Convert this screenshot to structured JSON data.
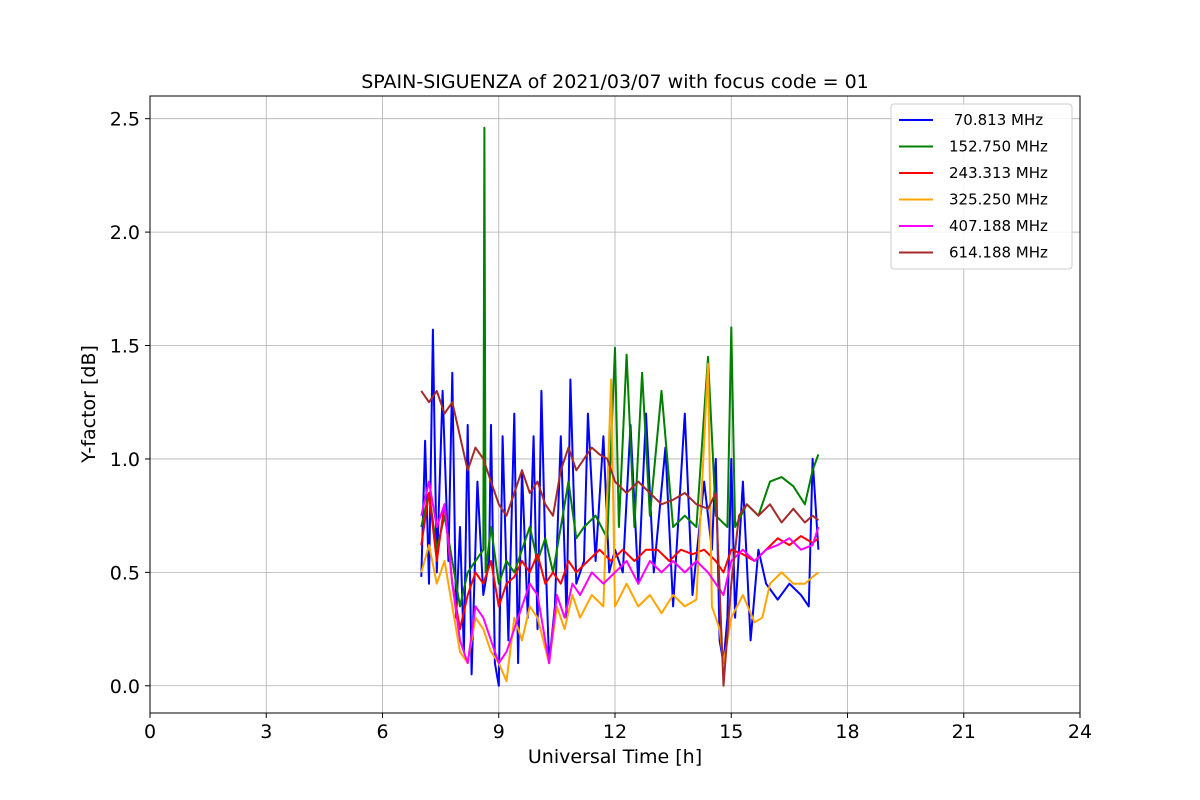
{
  "chart_data": {
    "type": "line",
    "title": "SPAIN-SIGUENZA of 2021/03/07 with focus code = 01",
    "xlabel": "Universal Time [h]",
    "ylabel": "Y-factor [dB]",
    "xlim": [
      0,
      24
    ],
    "ylim": [
      -0.12,
      2.6
    ],
    "xticks": [
      0,
      3,
      6,
      9,
      12,
      15,
      18,
      21,
      24
    ],
    "xtick_labels": [
      "0",
      "3",
      "6",
      "9",
      "12",
      "15",
      "18",
      "21",
      "24"
    ],
    "yticks": [
      0.0,
      0.5,
      1.0,
      1.5,
      2.0,
      2.5
    ],
    "ytick_labels": [
      "0.0",
      "0.5",
      "1.0",
      "1.5",
      "2.0",
      "2.5"
    ],
    "grid": true,
    "legend_position": "top-right",
    "series": [
      {
        "name": " 70.813 MHz",
        "color": "#0000ff",
        "points": [
          [
            7.0,
            0.48
          ],
          [
            7.1,
            1.08
          ],
          [
            7.2,
            0.45
          ],
          [
            7.3,
            1.57
          ],
          [
            7.4,
            0.5
          ],
          [
            7.55,
            1.3
          ],
          [
            7.7,
            0.55
          ],
          [
            7.8,
            1.38
          ],
          [
            7.9,
            0.3
          ],
          [
            8.0,
            0.7
          ],
          [
            8.1,
            0.15
          ],
          [
            8.2,
            1.15
          ],
          [
            8.3,
            0.05
          ],
          [
            8.45,
            0.9
          ],
          [
            8.6,
            0.4
          ],
          [
            8.75,
            0.55
          ],
          [
            8.8,
            1.15
          ],
          [
            8.9,
            0.1
          ],
          [
            9.0,
            0.0
          ],
          [
            9.1,
            1.1
          ],
          [
            9.25,
            0.2
          ],
          [
            9.4,
            1.2
          ],
          [
            9.5,
            0.1
          ],
          [
            9.6,
            0.95
          ],
          [
            9.75,
            0.3
          ],
          [
            9.9,
            1.1
          ],
          [
            10.0,
            0.25
          ],
          [
            10.1,
            1.3
          ],
          [
            10.2,
            0.6
          ],
          [
            10.3,
            0.1
          ],
          [
            10.45,
            0.35
          ],
          [
            10.6,
            1.1
          ],
          [
            10.75,
            0.3
          ],
          [
            10.85,
            1.35
          ],
          [
            11.0,
            0.45
          ],
          [
            11.2,
            0.55
          ],
          [
            11.3,
            1.2
          ],
          [
            11.5,
            0.55
          ],
          [
            11.7,
            1.1
          ],
          [
            11.85,
            0.5
          ],
          [
            12.0,
            0.6
          ],
          [
            12.2,
            0.5
          ],
          [
            12.4,
            1.15
          ],
          [
            12.6,
            0.45
          ],
          [
            12.8,
            1.2
          ],
          [
            13.0,
            0.5
          ],
          [
            13.3,
            1.05
          ],
          [
            13.5,
            0.35
          ],
          [
            13.8,
            1.2
          ],
          [
            14.0,
            0.4
          ],
          [
            14.3,
            0.9
          ],
          [
            14.5,
            0.6
          ],
          [
            14.6,
            1.0
          ],
          [
            14.7,
            0.2
          ],
          [
            14.8,
            0.1
          ],
          [
            14.9,
            0.3
          ],
          [
            15.0,
            1.0
          ],
          [
            15.1,
            0.3
          ],
          [
            15.3,
            0.9
          ],
          [
            15.5,
            0.2
          ],
          [
            15.7,
            0.6
          ],
          [
            15.9,
            0.45
          ],
          [
            16.2,
            0.38
          ],
          [
            16.5,
            0.45
          ],
          [
            16.8,
            0.4
          ],
          [
            17.0,
            0.35
          ],
          [
            17.1,
            1.0
          ],
          [
            17.25,
            0.6
          ]
        ]
      },
      {
        "name": "152.750 MHz",
        "color": "#008000",
        "points": [
          [
            7.0,
            0.7
          ],
          [
            7.2,
            0.85
          ],
          [
            7.4,
            0.6
          ],
          [
            7.6,
            0.75
          ],
          [
            7.8,
            0.55
          ],
          [
            8.0,
            0.35
          ],
          [
            8.2,
            0.5
          ],
          [
            8.4,
            0.55
          ],
          [
            8.6,
            0.6
          ],
          [
            8.63,
            2.46
          ],
          [
            8.66,
            0.5
          ],
          [
            8.8,
            0.7
          ],
          [
            9.0,
            0.45
          ],
          [
            9.2,
            0.55
          ],
          [
            9.4,
            0.5
          ],
          [
            9.6,
            0.6
          ],
          [
            9.8,
            0.7
          ],
          [
            10.0,
            0.55
          ],
          [
            10.2,
            0.65
          ],
          [
            10.4,
            0.5
          ],
          [
            10.6,
            0.7
          ],
          [
            10.8,
            0.9
          ],
          [
            11.0,
            0.65
          ],
          [
            11.2,
            0.7
          ],
          [
            11.5,
            0.75
          ],
          [
            11.8,
            0.65
          ],
          [
            12.0,
            1.49
          ],
          [
            12.1,
            0.7
          ],
          [
            12.3,
            1.46
          ],
          [
            12.5,
            0.7
          ],
          [
            12.7,
            1.38
          ],
          [
            12.9,
            0.75
          ],
          [
            13.2,
            1.3
          ],
          [
            13.5,
            0.7
          ],
          [
            13.8,
            0.75
          ],
          [
            14.1,
            0.7
          ],
          [
            14.4,
            1.45
          ],
          [
            14.6,
            0.75
          ],
          [
            14.9,
            0.7
          ],
          [
            15.0,
            1.58
          ],
          [
            15.1,
            0.7
          ],
          [
            15.4,
            0.8
          ],
          [
            15.7,
            0.75
          ],
          [
            16.0,
            0.9
          ],
          [
            16.3,
            0.92
          ],
          [
            16.6,
            0.88
          ],
          [
            16.9,
            0.8
          ],
          [
            17.1,
            0.95
          ],
          [
            17.25,
            1.02
          ]
        ]
      },
      {
        "name": "243.313 MHz",
        "color": "#ff0000",
        "points": [
          [
            7.0,
            0.62
          ],
          [
            7.2,
            0.85
          ],
          [
            7.4,
            0.55
          ],
          [
            7.6,
            0.8
          ],
          [
            7.8,
            0.45
          ],
          [
            8.0,
            0.25
          ],
          [
            8.2,
            0.4
          ],
          [
            8.4,
            0.5
          ],
          [
            8.6,
            0.45
          ],
          [
            8.8,
            0.55
          ],
          [
            9.0,
            0.35
          ],
          [
            9.2,
            0.45
          ],
          [
            9.4,
            0.48
          ],
          [
            9.6,
            0.55
          ],
          [
            9.8,
            0.5
          ],
          [
            10.0,
            0.58
          ],
          [
            10.2,
            0.45
          ],
          [
            10.4,
            0.5
          ],
          [
            10.6,
            0.45
          ],
          [
            10.8,
            0.55
          ],
          [
            11.0,
            0.5
          ],
          [
            11.3,
            0.55
          ],
          [
            11.6,
            0.6
          ],
          [
            11.9,
            0.55
          ],
          [
            12.2,
            0.6
          ],
          [
            12.5,
            0.55
          ],
          [
            12.8,
            0.6
          ],
          [
            13.1,
            0.6
          ],
          [
            13.4,
            0.55
          ],
          [
            13.7,
            0.6
          ],
          [
            14.0,
            0.58
          ],
          [
            14.3,
            0.6
          ],
          [
            14.6,
            0.55
          ],
          [
            14.8,
            0.5
          ],
          [
            15.0,
            0.6
          ],
          [
            15.3,
            0.58
          ],
          [
            15.6,
            0.55
          ],
          [
            15.9,
            0.6
          ],
          [
            16.2,
            0.65
          ],
          [
            16.5,
            0.62
          ],
          [
            16.8,
            0.66
          ],
          [
            17.1,
            0.63
          ],
          [
            17.25,
            0.65
          ]
        ]
      },
      {
        "name": "325.250 MHz",
        "color": "#ffa500",
        "points": [
          [
            7.0,
            0.5
          ],
          [
            7.2,
            0.62
          ],
          [
            7.4,
            0.45
          ],
          [
            7.6,
            0.55
          ],
          [
            7.8,
            0.35
          ],
          [
            8.0,
            0.15
          ],
          [
            8.2,
            0.1
          ],
          [
            8.4,
            0.3
          ],
          [
            8.6,
            0.25
          ],
          [
            8.8,
            0.15
          ],
          [
            9.0,
            0.1
          ],
          [
            9.2,
            0.02
          ],
          [
            9.4,
            0.3
          ],
          [
            9.6,
            0.2
          ],
          [
            9.8,
            0.35
          ],
          [
            10.0,
            0.3
          ],
          [
            10.3,
            0.1
          ],
          [
            10.5,
            0.35
          ],
          [
            10.7,
            0.25
          ],
          [
            10.9,
            0.4
          ],
          [
            11.1,
            0.3
          ],
          [
            11.4,
            0.4
          ],
          [
            11.7,
            0.35
          ],
          [
            11.9,
            1.35
          ],
          [
            12.0,
            0.35
          ],
          [
            12.3,
            0.45
          ],
          [
            12.6,
            0.35
          ],
          [
            12.9,
            0.4
          ],
          [
            13.2,
            0.32
          ],
          [
            13.5,
            0.4
          ],
          [
            13.8,
            0.35
          ],
          [
            14.1,
            0.38
          ],
          [
            14.4,
            1.42
          ],
          [
            14.5,
            0.35
          ],
          [
            14.7,
            0.25
          ],
          [
            14.8,
            0.1
          ],
          [
            15.0,
            0.3
          ],
          [
            15.3,
            0.4
          ],
          [
            15.6,
            0.28
          ],
          [
            15.8,
            0.3
          ],
          [
            16.0,
            0.45
          ],
          [
            16.3,
            0.5
          ],
          [
            16.6,
            0.45
          ],
          [
            16.9,
            0.45
          ],
          [
            17.1,
            0.48
          ],
          [
            17.25,
            0.5
          ]
        ]
      },
      {
        "name": "407.188 MHz",
        "color": "#ff00ff",
        "points": [
          [
            7.0,
            0.75
          ],
          [
            7.2,
            0.9
          ],
          [
            7.4,
            0.7
          ],
          [
            7.6,
            0.8
          ],
          [
            7.8,
            0.45
          ],
          [
            8.0,
            0.2
          ],
          [
            8.2,
            0.1
          ],
          [
            8.4,
            0.35
          ],
          [
            8.6,
            0.3
          ],
          [
            8.8,
            0.2
          ],
          [
            9.0,
            0.1
          ],
          [
            9.2,
            0.15
          ],
          [
            9.4,
            0.25
          ],
          [
            9.6,
            0.35
          ],
          [
            9.8,
            0.45
          ],
          [
            10.0,
            0.4
          ],
          [
            10.3,
            0.1
          ],
          [
            10.5,
            0.4
          ],
          [
            10.7,
            0.3
          ],
          [
            10.9,
            0.45
          ],
          [
            11.1,
            0.4
          ],
          [
            11.4,
            0.5
          ],
          [
            11.7,
            0.45
          ],
          [
            12.0,
            0.5
          ],
          [
            12.3,
            0.55
          ],
          [
            12.6,
            0.45
          ],
          [
            12.9,
            0.55
          ],
          [
            13.2,
            0.5
          ],
          [
            13.5,
            0.55
          ],
          [
            13.8,
            0.5
          ],
          [
            14.1,
            0.55
          ],
          [
            14.4,
            0.5
          ],
          [
            14.6,
            0.45
          ],
          [
            14.8,
            0.4
          ],
          [
            15.0,
            0.55
          ],
          [
            15.3,
            0.6
          ],
          [
            15.6,
            0.55
          ],
          [
            15.9,
            0.6
          ],
          [
            16.2,
            0.62
          ],
          [
            16.5,
            0.65
          ],
          [
            16.8,
            0.6
          ],
          [
            17.1,
            0.62
          ],
          [
            17.25,
            0.7
          ]
        ]
      },
      {
        "name": "614.188 MHz",
        "color": "#a52a2a",
        "points": [
          [
            7.0,
            1.3
          ],
          [
            7.2,
            1.25
          ],
          [
            7.4,
            1.3
          ],
          [
            7.6,
            1.2
          ],
          [
            7.8,
            1.25
          ],
          [
            8.0,
            1.1
          ],
          [
            8.2,
            0.95
          ],
          [
            8.4,
            1.05
          ],
          [
            8.6,
            1.0
          ],
          [
            8.8,
            0.9
          ],
          [
            9.0,
            0.8
          ],
          [
            9.2,
            0.75
          ],
          [
            9.4,
            0.85
          ],
          [
            9.6,
            0.95
          ],
          [
            9.8,
            0.85
          ],
          [
            10.0,
            0.9
          ],
          [
            10.2,
            0.8
          ],
          [
            10.4,
            0.75
          ],
          [
            10.6,
            0.95
          ],
          [
            10.8,
            1.05
          ],
          [
            11.0,
            0.95
          ],
          [
            11.2,
            1.0
          ],
          [
            11.4,
            1.05
          ],
          [
            11.6,
            1.02
          ],
          [
            11.8,
            1.0
          ],
          [
            12.0,
            0.9
          ],
          [
            12.3,
            0.85
          ],
          [
            12.6,
            0.9
          ],
          [
            12.9,
            0.85
          ],
          [
            13.2,
            0.8
          ],
          [
            13.5,
            0.82
          ],
          [
            13.8,
            0.85
          ],
          [
            14.1,
            0.8
          ],
          [
            14.4,
            0.78
          ],
          [
            14.6,
            0.85
          ],
          [
            14.8,
            0.0
          ],
          [
            15.0,
            0.45
          ],
          [
            15.2,
            0.75
          ],
          [
            15.4,
            0.8
          ],
          [
            15.7,
            0.75
          ],
          [
            16.0,
            0.8
          ],
          [
            16.3,
            0.72
          ],
          [
            16.6,
            0.78
          ],
          [
            16.9,
            0.72
          ],
          [
            17.1,
            0.75
          ],
          [
            17.25,
            0.73
          ]
        ]
      }
    ]
  }
}
